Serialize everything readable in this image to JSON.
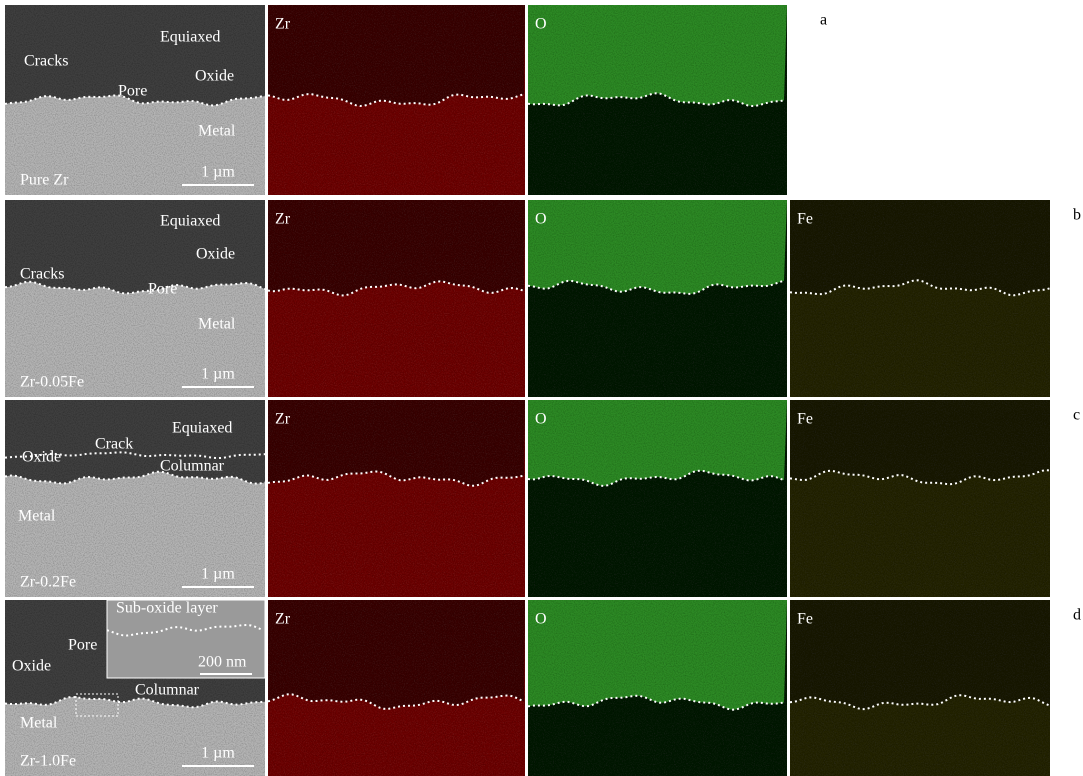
{
  "rows": [
    {
      "letter": "a",
      "sem": {
        "labels": [
          "Cracks",
          "Pore",
          "Equiaxed",
          "Oxide",
          "Metal"
        ],
        "sample": "Pure Zr",
        "scale_bar": "1 µm"
      },
      "maps": [
        "Zr",
        "O"
      ]
    },
    {
      "letter": "b",
      "sem": {
        "labels": [
          "Equiaxed",
          "Oxide",
          "Cracks",
          "Pore",
          "Metal"
        ],
        "sample": "Zr-0.05Fe",
        "scale_bar": "1 µm"
      },
      "maps": [
        "Zr",
        "O",
        "Fe"
      ]
    },
    {
      "letter": "c",
      "sem": {
        "labels": [
          "Crack",
          "Equiaxed",
          "Oxide",
          "Columnar",
          "Metal"
        ],
        "sample": "Zr-0.2Fe",
        "scale_bar": "1 µm"
      },
      "maps": [
        "Zr",
        "O",
        "Fe"
      ]
    },
    {
      "letter": "d",
      "sem": {
        "labels": [
          "Sub-oxide layer",
          "Pore",
          "Oxide",
          "200 nm",
          "Columnar",
          "Metal"
        ],
        "sample": "Zr-1.0Fe",
        "scale_bar": "1 µm"
      },
      "maps": [
        "Zr",
        "O",
        "Fe"
      ]
    }
  ]
}
